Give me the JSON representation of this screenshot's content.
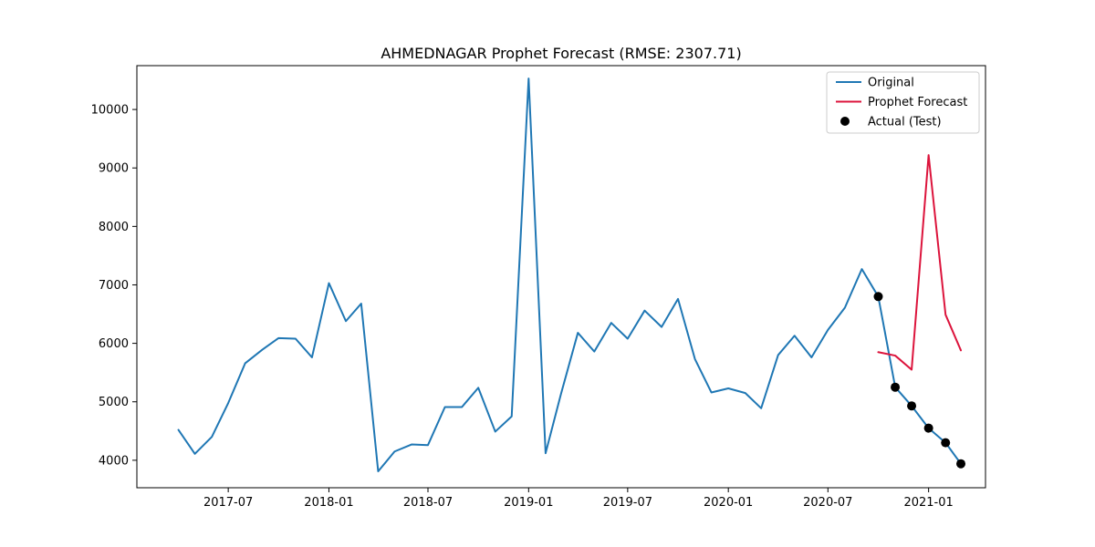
{
  "chart_data": {
    "type": "line",
    "title": "AHMEDNAGAR Prophet Forecast (RMSE: 2307.71)",
    "xlabel": "",
    "ylabel": "",
    "x_axis_type": "date",
    "xlim": [
      "2017-01-15",
      "2021-04-15"
    ],
    "ylim": [
      3530,
      10750
    ],
    "x_ticks": [
      {
        "date": "2017-07-01",
        "label": "2017-07"
      },
      {
        "date": "2018-01-01",
        "label": "2018-01"
      },
      {
        "date": "2018-07-01",
        "label": "2018-07"
      },
      {
        "date": "2019-01-01",
        "label": "2019-01"
      },
      {
        "date": "2019-07-01",
        "label": "2019-07"
      },
      {
        "date": "2020-01-01",
        "label": "2020-01"
      },
      {
        "date": "2020-07-01",
        "label": "2020-07"
      },
      {
        "date": "2021-01-01",
        "label": "2021-01"
      }
    ],
    "y_ticks": [
      4000,
      5000,
      6000,
      7000,
      8000,
      9000,
      10000
    ],
    "grid": false,
    "legend_position": "top-right",
    "series": [
      {
        "name": "Original",
        "kind": "line",
        "color": "#1f77b4",
        "x": [
          "2017-04-01",
          "2017-05-01",
          "2017-06-01",
          "2017-07-01",
          "2017-08-01",
          "2017-09-01",
          "2017-10-01",
          "2017-11-01",
          "2017-12-01",
          "2018-01-01",
          "2018-02-01",
          "2018-03-01",
          "2018-04-01",
          "2018-05-01",
          "2018-06-01",
          "2018-07-01",
          "2018-08-01",
          "2018-09-01",
          "2018-10-01",
          "2018-11-01",
          "2018-12-01",
          "2019-01-01",
          "2019-02-01",
          "2019-03-01",
          "2019-04-01",
          "2019-05-01",
          "2019-06-01",
          "2019-07-01",
          "2019-08-01",
          "2019-09-01",
          "2019-10-01",
          "2019-11-01",
          "2019-12-01",
          "2020-01-01",
          "2020-02-01",
          "2020-03-01",
          "2020-04-01",
          "2020-05-01",
          "2020-06-01",
          "2020-07-01",
          "2020-08-01",
          "2020-09-01",
          "2020-10-01",
          "2020-11-01",
          "2020-12-01",
          "2021-01-01",
          "2021-02-01",
          "2021-03-01"
        ],
        "y": [
          4520,
          4110,
          4400,
          4980,
          5660,
          5890,
          6090,
          6080,
          5760,
          7030,
          6380,
          6680,
          3810,
          4150,
          4270,
          4260,
          4910,
          4910,
          5240,
          4490,
          4750,
          10530,
          4120,
          5130,
          6180,
          5860,
          6350,
          6080,
          6560,
          6280,
          6760,
          5730,
          5160,
          5230,
          5150,
          4890,
          5800,
          6130,
          5760,
          6230,
          6610,
          7270,
          6800,
          5250,
          4930,
          4550,
          4300,
          3940
        ]
      },
      {
        "name": "Prophet Forecast",
        "kind": "line",
        "color": "#dc143c",
        "x": [
          "2020-10-01",
          "2020-11-01",
          "2020-12-01",
          "2021-01-01",
          "2021-02-01",
          "2021-03-01"
        ],
        "y": [
          5850,
          5790,
          5550,
          9220,
          6490,
          5880
        ]
      },
      {
        "name": "Actual (Test)",
        "kind": "scatter",
        "color": "#000000",
        "x": [
          "2020-10-01",
          "2020-11-01",
          "2020-12-01",
          "2021-01-01",
          "2021-02-01",
          "2021-03-01"
        ],
        "y": [
          6800,
          5250,
          4930,
          4550,
          4300,
          3940
        ]
      }
    ]
  }
}
